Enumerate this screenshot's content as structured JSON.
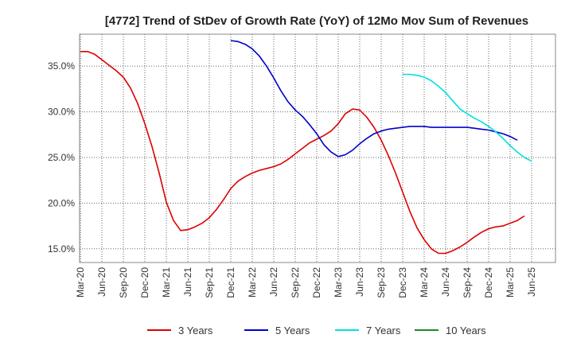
{
  "chart_data": {
    "type": "line",
    "title": "[4772]  Trend of StDev of Growth Rate (YoY) of 12Mo Mov Sum of Revenues",
    "xlabel": "",
    "ylabel": "",
    "ylim": [
      13.5,
      38.5
    ],
    "y_ticks": [
      15.0,
      20.0,
      25.0,
      30.0,
      35.0
    ],
    "y_tick_labels": [
      "15.0%",
      "20.0%",
      "25.0%",
      "30.0%",
      "35.0%"
    ],
    "x_tick_labels": [
      "Mar-20",
      "Jun-20",
      "Sep-20",
      "Dec-20",
      "Mar-21",
      "Jun-21",
      "Sep-21",
      "Dec-21",
      "Mar-22",
      "Jun-22",
      "Sep-22",
      "Dec-22",
      "Mar-23",
      "Jun-23",
      "Sep-23",
      "Dec-23",
      "Mar-24",
      "Jun-24",
      "Sep-24",
      "Dec-24",
      "Mar-25",
      "Jun-25"
    ],
    "x_month_start": "2020-03",
    "grid": true,
    "legend_position": "bottom",
    "series": [
      {
        "name": "3 Years",
        "color": "#dd0000",
        "start_month_index": 0,
        "values": [
          36.6,
          36.6,
          36.3,
          35.7,
          35.1,
          34.5,
          33.8,
          32.6,
          30.9,
          28.7,
          26.2,
          23.3,
          20.1,
          18.1,
          17.0,
          17.1,
          17.4,
          17.8,
          18.4,
          19.3,
          20.4,
          21.6,
          22.4,
          22.9,
          23.3,
          23.6,
          23.8,
          24.0,
          24.3,
          24.8,
          25.4,
          26.0,
          26.6,
          27.0,
          27.4,
          27.9,
          28.7,
          29.8,
          30.3,
          30.2,
          29.4,
          28.3,
          26.9,
          25.2,
          23.3,
          21.2,
          19.1,
          17.3,
          16.0,
          15.0,
          14.5,
          14.5,
          14.8,
          15.2,
          15.7,
          16.3,
          16.8,
          17.2,
          17.4,
          17.5,
          17.8,
          18.1,
          18.6
        ]
      },
      {
        "name": "5 Years",
        "color": "#0000cc",
        "start_month_index": 21,
        "values": [
          37.8,
          37.7,
          37.4,
          36.9,
          36.1,
          35.0,
          33.7,
          32.3,
          31.1,
          30.2,
          29.5,
          28.6,
          27.6,
          26.4,
          25.6,
          25.1,
          25.3,
          25.8,
          26.5,
          27.1,
          27.6,
          27.9,
          28.1,
          28.2,
          28.3,
          28.4,
          28.4,
          28.4,
          28.3,
          28.3,
          28.3,
          28.3,
          28.3,
          28.3,
          28.2,
          28.1,
          28.0,
          27.8,
          27.6,
          27.3,
          26.9
        ]
      },
      {
        "name": "7 Years",
        "color": "#00e0e0",
        "start_month_index": 45,
        "values": [
          34.1,
          34.1,
          34.0,
          33.8,
          33.4,
          32.8,
          32.1,
          31.2,
          30.3,
          29.8,
          29.3,
          28.9,
          28.4,
          27.8,
          27.1,
          26.3,
          25.6,
          25.0,
          24.6
        ]
      },
      {
        "name": "10 Years",
        "color": "#228822",
        "start_month_index": 0,
        "values": []
      }
    ]
  }
}
